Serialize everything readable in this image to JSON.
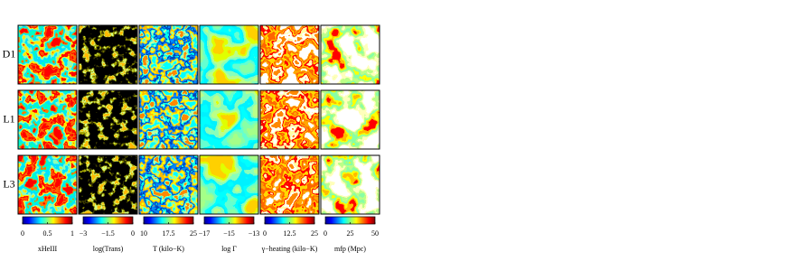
{
  "rows": [
    "D1",
    "L1",
    "L3"
  ],
  "columns": [
    {
      "label": "xHeIII",
      "lim": [
        0,
        1
      ],
      "ticks": [
        0,
        0.5,
        1
      ]
    },
    {
      "label": "log(Trans)",
      "lim": [
        -3,
        0
      ],
      "ticks": [
        {
          "value": -3,
          "label": "−3"
        },
        {
          "value": -1.5,
          "label": "−1.5"
        },
        0
      ]
    },
    {
      "label": "T (kilo−K)",
      "lim": [
        10,
        25
      ],
      "ticks": [
        10,
        17.5,
        25
      ]
    },
    {
      "label": "log Γ",
      "lim": [
        -17,
        -13
      ],
      "ticks": [
        {
          "value": -17,
          "label": "−17"
        },
        {
          "value": -15,
          "label": "−15"
        },
        {
          "value": -13,
          "label": "−13"
        }
      ]
    },
    {
      "label": "γ−heating (kilo−K)",
      "lim": [
        0,
        25
      ],
      "ticks": [
        0,
        12.5,
        25
      ]
    },
    {
      "label": "mfp (Mpc)",
      "lim": [
        0,
        50
      ],
      "ticks": [
        0,
        25,
        50
      ]
    }
  ]
}
